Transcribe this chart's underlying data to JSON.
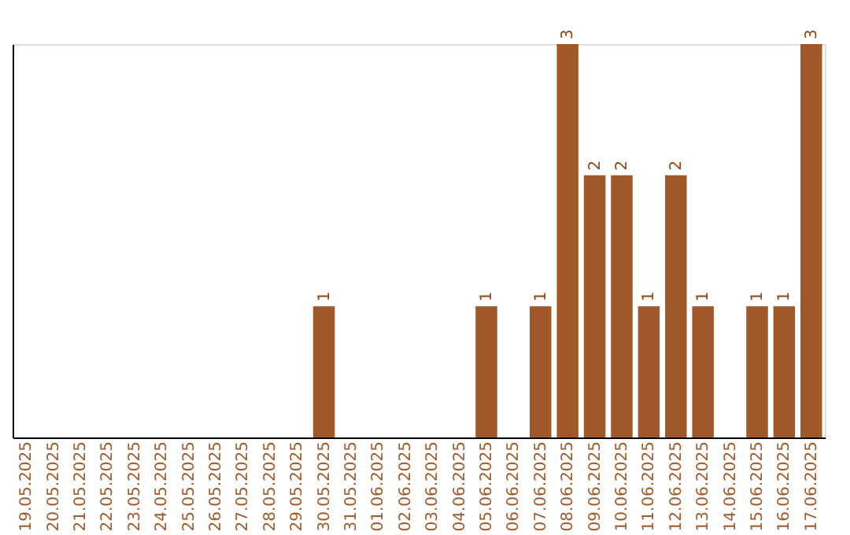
{
  "chart_data": {
    "type": "bar",
    "categories": [
      "19.05.2025",
      "20.05.2025",
      "21.05.2025",
      "22.05.2025",
      "23.05.2025",
      "24.05.2025",
      "25.05.2025",
      "26.05.2025",
      "27.05.2025",
      "28.05.2025",
      "29.05.2025",
      "30.05.2025",
      "31.05.2025",
      "01.06.2025",
      "02.06.2025",
      "03.06.2025",
      "04.06.2025",
      "05.06.2025",
      "06.06.2025",
      "07.06.2025",
      "08.06.2025",
      "09.06.2025",
      "10.06.2025",
      "11.06.2025",
      "12.06.2025",
      "13.06.2025",
      "14.06.2025",
      "15.06.2025",
      "16.06.2025",
      "17.06.2025"
    ],
    "values": [
      0,
      0,
      0,
      0,
      0,
      0,
      0,
      0,
      0,
      0,
      0,
      1,
      0,
      0,
      0,
      0,
      0,
      1,
      0,
      1,
      3,
      2,
      2,
      1,
      2,
      1,
      0,
      1,
      1,
      3
    ],
    "value_labels": [
      null,
      null,
      null,
      null,
      null,
      null,
      null,
      null,
      null,
      null,
      null,
      "1",
      null,
      null,
      null,
      null,
      null,
      "1",
      null,
      "1",
      "3",
      "2",
      "2",
      "1",
      "2",
      "1",
      null,
      "1",
      "1",
      "3"
    ],
    "color": "#a0592a",
    "ylim": [
      0,
      3
    ],
    "tick_labels": "x",
    "grid": false
  }
}
